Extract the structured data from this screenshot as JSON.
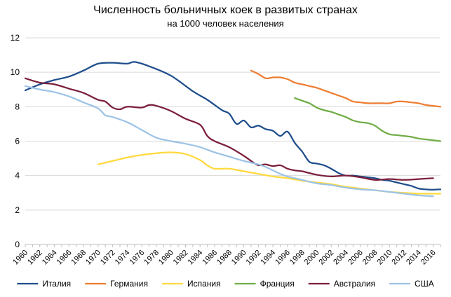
{
  "chart_data": {
    "type": "line",
    "title": "Численность больничных коек в развитых странах",
    "subtitle": "на 1000 человек населения",
    "xlabel": "",
    "ylabel": "",
    "xlim": [
      1960,
      2017
    ],
    "ylim": [
      0,
      12
    ],
    "y_ticks": [
      0,
      2,
      4,
      6,
      8,
      10,
      12
    ],
    "x_ticks": [
      1960,
      1962,
      1964,
      1966,
      1968,
      1970,
      1972,
      1974,
      1976,
      1978,
      1980,
      1982,
      1984,
      1986,
      1988,
      1990,
      1992,
      1994,
      1996,
      1998,
      2000,
      2002,
      2004,
      2006,
      2008,
      2010,
      2012,
      2014,
      2016
    ],
    "grid": "horizontal",
    "legend_position": "bottom",
    "series": [
      {
        "name": "Италия",
        "color": "#1F4E8C",
        "x": [
          1960,
          1962,
          1964,
          1966,
          1968,
          1970,
          1972,
          1974,
          1975,
          1977,
          1980,
          1983,
          1985,
          1987,
          1988,
          1989,
          1990,
          1991,
          1992,
          1993,
          1994,
          1995,
          1996,
          1997,
          1998,
          1999,
          2000,
          2001,
          2002,
          2003,
          2004,
          2005,
          2006,
          2007,
          2008,
          2009,
          2010,
          2011,
          2012,
          2013,
          2014,
          2015,
          2016,
          2017
        ],
        "y": [
          8.95,
          9.3,
          9.55,
          9.75,
          10.1,
          10.5,
          10.55,
          10.5,
          10.6,
          10.35,
          9.8,
          8.9,
          8.4,
          7.8,
          7.6,
          7.0,
          7.2,
          6.8,
          6.9,
          6.7,
          6.6,
          6.3,
          6.55,
          5.9,
          5.4,
          4.8,
          4.7,
          4.6,
          4.4,
          4.15,
          4.0,
          4.0,
          3.95,
          3.9,
          3.85,
          3.75,
          3.7,
          3.6,
          3.5,
          3.4,
          3.25,
          3.2,
          3.18,
          3.2
        ]
      },
      {
        "name": "Германия",
        "color": "#ED7D31",
        "x": [
          1991,
          1992,
          1993,
          1994,
          1995,
          1996,
          1997,
          1998,
          1999,
          2000,
          2001,
          2002,
          2003,
          2004,
          2005,
          2006,
          2007,
          2008,
          2009,
          2010,
          2011,
          2012,
          2013,
          2014,
          2015,
          2016,
          2017
        ],
        "y": [
          10.1,
          9.9,
          9.65,
          9.7,
          9.7,
          9.6,
          9.4,
          9.3,
          9.2,
          9.1,
          8.95,
          8.8,
          8.65,
          8.5,
          8.3,
          8.25,
          8.2,
          8.2,
          8.2,
          8.2,
          8.3,
          8.3,
          8.25,
          8.2,
          8.1,
          8.05,
          8.0
        ]
      },
      {
        "name": "Испания",
        "color": "#FFD93D",
        "x": [
          1970,
          1972,
          1974,
          1976,
          1978,
          1980,
          1982,
          1984,
          1985,
          1986,
          1988,
          1990,
          1992,
          1994,
          1996,
          1998,
          2000,
          2002,
          2004,
          2006,
          2008,
          2010,
          2012,
          2014,
          2016,
          2017
        ],
        "y": [
          4.65,
          4.85,
          5.05,
          5.2,
          5.3,
          5.35,
          5.25,
          4.9,
          4.6,
          4.4,
          4.4,
          4.25,
          4.1,
          3.95,
          3.85,
          3.7,
          3.6,
          3.5,
          3.35,
          3.25,
          3.15,
          3.05,
          3.0,
          2.95,
          2.95,
          2.95
        ]
      },
      {
        "name": "Франция",
        "color": "#70AD47",
        "x": [
          1997,
          1998,
          1999,
          2000,
          2001,
          2002,
          2003,
          2004,
          2005,
          2006,
          2007,
          2008,
          2009,
          2010,
          2011,
          2012,
          2013,
          2014,
          2015,
          2016,
          2017
        ],
        "y": [
          8.5,
          8.35,
          8.2,
          7.95,
          7.8,
          7.7,
          7.55,
          7.4,
          7.2,
          7.1,
          7.05,
          6.9,
          6.6,
          6.4,
          6.35,
          6.3,
          6.25,
          6.15,
          6.1,
          6.05,
          6.0
        ]
      },
      {
        "name": "Австралия",
        "color": "#7B1E3A",
        "x": [
          1960,
          1962,
          1964,
          1966,
          1968,
          1970,
          1971,
          1972,
          1973,
          1974,
          1976,
          1977,
          1978,
          1980,
          1982,
          1984,
          1985,
          1986,
          1988,
          1990,
          1991,
          1992,
          1993,
          1994,
          1995,
          1996,
          1997,
          1998,
          2000,
          2002,
          2004,
          2006,
          2008,
          2010,
          2012,
          2014,
          2016
        ],
        "y": [
          9.65,
          9.4,
          9.3,
          9.05,
          8.8,
          8.4,
          8.3,
          7.95,
          7.85,
          8.0,
          7.95,
          8.1,
          8.05,
          7.75,
          7.3,
          6.95,
          6.3,
          6.0,
          5.65,
          5.15,
          4.85,
          4.6,
          4.65,
          4.55,
          4.6,
          4.4,
          4.3,
          4.25,
          4.05,
          3.95,
          4.0,
          3.9,
          3.75,
          3.8,
          3.75,
          3.8,
          3.85
        ]
      },
      {
        "name": "США",
        "color": "#9DC3E6",
        "x": [
          1960,
          1962,
          1964,
          1966,
          1968,
          1970,
          1971,
          1972,
          1974,
          1976,
          1978,
          1980,
          1982,
          1984,
          1986,
          1988,
          1990,
          1992,
          1993,
          1994,
          1995,
          1996,
          1998,
          2000,
          2002,
          2004,
          2006,
          2008,
          2010,
          2012,
          2014,
          2016
        ],
        "y": [
          9.2,
          9.0,
          8.85,
          8.6,
          8.25,
          7.9,
          7.5,
          7.4,
          7.1,
          6.65,
          6.2,
          6.0,
          5.85,
          5.65,
          5.35,
          5.1,
          4.85,
          4.65,
          4.5,
          4.3,
          4.1,
          3.95,
          3.75,
          3.55,
          3.45,
          3.3,
          3.2,
          3.15,
          3.05,
          2.95,
          2.85,
          2.8
        ]
      }
    ]
  }
}
